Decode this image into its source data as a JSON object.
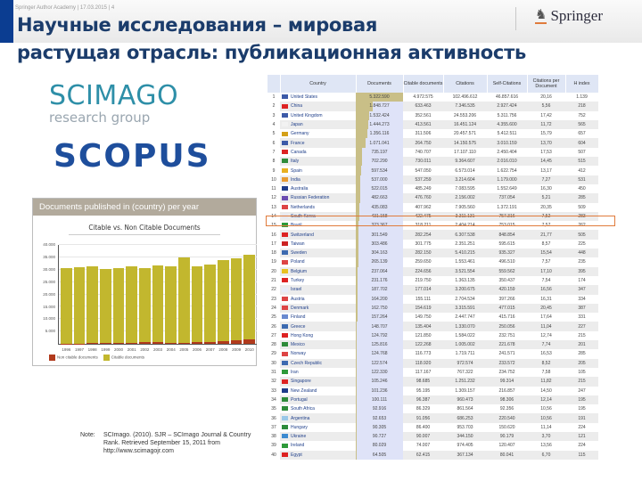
{
  "header": {
    "footer_text": "Springer Author Academy | 17.03.2015 | 4",
    "title_line1": "Научные исследования – мировая",
    "title_line2": "растущая отрасль: публикационная активность",
    "brand": "Springer",
    "brand_icon": "chess-knight-icon",
    "colors": {
      "title": "#1b3c6b",
      "accent_bar": "#0b3d91",
      "brand_underline": "#e07b3c"
    }
  },
  "logos": {
    "scimago_main": "SCIMAGO",
    "scimago_sub": "research group",
    "scopus": "SCOPUS"
  },
  "chart_panel": {
    "header": "Documents published in (country) per year"
  },
  "chart_data": {
    "type": "bar",
    "title": "Citable vs. Non Citable Documents",
    "xlabel": "",
    "ylabel": "",
    "categories": [
      "1996",
      "1997",
      "1998",
      "1999",
      "2000",
      "2001",
      "2002",
      "2003",
      "2004",
      "2005",
      "2006",
      "2007",
      "2008",
      "2009",
      "2010"
    ],
    "series": [
      {
        "name": "Non citable documents",
        "color": "#b13a1c",
        "values": [
          150,
          180,
          200,
          220,
          500,
          400,
          600,
          700,
          500,
          450,
          800,
          800,
          1200,
          1300,
          1700
        ]
      },
      {
        "name": "Citable documents",
        "color": "#c2b72e",
        "values": [
          30600,
          30800,
          31200,
          29900,
          30100,
          30900,
          30100,
          31000,
          31000,
          34600,
          30500,
          31400,
          32500,
          33300,
          34400
        ]
      }
    ],
    "yticks": [
      "5.000",
      "10.000",
      "15.000",
      "20.000",
      "25.000",
      "30.000",
      "35.000",
      "40.000"
    ],
    "ylim": [
      0,
      40000
    ],
    "grid": true,
    "legend_position": "bottom",
    "legend": [
      "Non citable documents",
      "Citable documents"
    ]
  },
  "note": {
    "label": "Note:",
    "text": "SCImago. (2010). SJR – SCImago Journal & Country Rank. Retrieved September 15, 2011 from http://www.scimagojr.com"
  },
  "table": {
    "headers": [
      "",
      "Country",
      "Documents",
      "Citable documents",
      "Citations",
      "Self-Citations",
      "Citations per Document",
      "H index"
    ],
    "highlight_row": 12,
    "rows": [
      {
        "rank": "1",
        "country": "United States",
        "flag": "#3c5aa8",
        "docs": "5.322.590",
        "citable": "4.972.575",
        "citations": "102.496.612",
        "self": "46.857.616",
        "cpd": "20,16",
        "h": "1.139",
        "bar": 100
      },
      {
        "rank": "2",
        "country": "China",
        "flag": "#d22",
        "docs": "1.848.727",
        "citable": "633.463",
        "citations": "7.346.535",
        "self": "2.927.424",
        "cpd": "5,56",
        "h": "218",
        "bar": 35
      },
      {
        "rank": "3",
        "country": "United Kingdom",
        "flag": "#3c5aa8",
        "docs": "1.532.424",
        "citable": "352.561",
        "citations": "24.553.206",
        "self": "5.311.756",
        "cpd": "17,42",
        "h": "752",
        "bar": 29
      },
      {
        "rank": "4",
        "country": "Japan",
        "flag": "#f2f2f2",
        "docs": "1.444.273",
        "citable": "413.561",
        "citations": "16.451.124",
        "self": "4.355.600",
        "cpd": "11,72",
        "h": "565",
        "bar": 27
      },
      {
        "rank": "5",
        "country": "Germany",
        "flag": "#d4a018",
        "docs": "1.356.116",
        "citable": "311.506",
        "citations": "20.457.571",
        "self": "5.412.511",
        "cpd": "15,79",
        "h": "657",
        "bar": 25
      },
      {
        "rank": "6",
        "country": "France",
        "flag": "#3c5aa8",
        "docs": "1.071.041",
        "citable": "264.750",
        "citations": "14.150.575",
        "self": "3.010.159",
        "cpd": "13,70",
        "h": "604",
        "bar": 20
      },
      {
        "rank": "7",
        "country": "Canada",
        "flag": "#d22",
        "docs": "735.197",
        "citable": "740.707",
        "citations": "17.107.110",
        "self": "2.450.404",
        "cpd": "17,53",
        "h": "507",
        "bar": 14
      },
      {
        "rank": "8",
        "country": "Italy",
        "flag": "#2e8b3a",
        "docs": "702.290",
        "citable": "730.011",
        "citations": "9.364.607",
        "self": "2.016.010",
        "cpd": "14,45",
        "h": "515",
        "bar": 13
      },
      {
        "rank": "9",
        "country": "Spain",
        "flag": "#e8b020",
        "docs": "597.534",
        "citable": "547.050",
        "citations": "6.573.014",
        "self": "1.622.754",
        "cpd": "13,17",
        "h": "412",
        "bar": 11
      },
      {
        "rank": "10",
        "country": "India",
        "flag": "#e89a30",
        "docs": "537.000",
        "citable": "537.259",
        "citations": "3.214.604",
        "self": "1.179.000",
        "cpd": "7,27",
        "h": "531",
        "bar": 10
      },
      {
        "rank": "11",
        "country": "Australia",
        "flag": "#1e3c8a",
        "docs": "522.015",
        "citable": "485.249",
        "citations": "7.083.595",
        "self": "1.552.649",
        "cpd": "16,30",
        "h": "450",
        "bar": 10
      },
      {
        "rank": "12",
        "country": "Russian Federation",
        "flag": "#6a4bb0",
        "docs": "482.663",
        "citable": "476.760",
        "citations": "2.156.002",
        "self": "737.054",
        "cpd": "5,21",
        "h": "285",
        "bar": 9
      },
      {
        "rank": "13",
        "country": "Netherlands",
        "flag": "#d44",
        "docs": "435.083",
        "citable": "407.962",
        "citations": "7.905.560",
        "self": "1.372.191",
        "cpd": "20,35",
        "h": "509",
        "bar": 8
      },
      {
        "rank": "14",
        "country": "South Korea",
        "flag": "#e8e8f0",
        "docs": "431.158",
        "citable": "422.475",
        "citations": "3.311.131",
        "self": "757.316",
        "cpd": "7,52",
        "h": "283",
        "bar": 8
      },
      {
        "rank": "15",
        "country": "Brazil",
        "flag": "#2e9a3a",
        "docs": "323.367",
        "citable": "318.211",
        "citations": "2.404.214",
        "self": "753.015",
        "cpd": "7,57",
        "h": "262",
        "bar": 6
      },
      {
        "rank": "16",
        "country": "Switzerland",
        "flag": "#d22",
        "docs": "301.549",
        "citable": "282.254",
        "citations": "6.307.538",
        "self": "848.854",
        "cpd": "21,77",
        "h": "505",
        "bar": 6
      },
      {
        "rank": "17",
        "country": "Taiwan",
        "flag": "#c22",
        "docs": "303.486",
        "citable": "301.775",
        "citations": "2.351.251",
        "self": "595.615",
        "cpd": "8,57",
        "h": "225",
        "bar": 6
      },
      {
        "rank": "18",
        "country": "Sweden",
        "flag": "#3c6ab0",
        "docs": "304.163",
        "citable": "282.150",
        "citations": "5.410.215",
        "self": "935.327",
        "cpd": "15,54",
        "h": "448",
        "bar": 6
      },
      {
        "rank": "19",
        "country": "Poland",
        "flag": "#d44",
        "docs": "265.139",
        "citable": "259.650",
        "citations": "1.553.461",
        "self": "496.510",
        "cpd": "7,57",
        "h": "235",
        "bar": 5
      },
      {
        "rank": "20",
        "country": "Belgium",
        "flag": "#e8c020",
        "docs": "237.064",
        "citable": "224.656",
        "citations": "3.521.554",
        "self": "559.562",
        "cpd": "17,10",
        "h": "395",
        "bar": 4
      },
      {
        "rank": "21",
        "country": "Turkey",
        "flag": "#d22",
        "docs": "231.176",
        "citable": "219.750",
        "citations": "1.363.135",
        "self": "350.437",
        "cpd": "7,54",
        "h": "174",
        "bar": 4
      },
      {
        "rank": "22",
        "country": "Israel",
        "flag": "#e8ecf8",
        "docs": "187.702",
        "citable": "177.014",
        "citations": "3.200.675",
        "self": "420.159",
        "cpd": "16,56",
        "h": "347",
        "bar": 3
      },
      {
        "rank": "23",
        "country": "Austria",
        "flag": "#d44",
        "docs": "164.200",
        "citable": "155.111",
        "citations": "2.704.534",
        "self": "397.266",
        "cpd": "16,31",
        "h": "334",
        "bar": 3
      },
      {
        "rank": "24",
        "country": "Denmark",
        "flag": "#d44",
        "docs": "162.750",
        "citable": "154.619",
        "citations": "3.315.591",
        "self": "477.015",
        "cpd": "20,45",
        "h": "387",
        "bar": 3
      },
      {
        "rank": "25",
        "country": "Finland",
        "flag": "#6a8ad0",
        "docs": "157.264",
        "citable": "149.750",
        "citations": "2.447.747",
        "self": "415.716",
        "cpd": "17,64",
        "h": "331",
        "bar": 3
      },
      {
        "rank": "26",
        "country": "Greece",
        "flag": "#3c6ab0",
        "docs": "148.707",
        "citable": "135.404",
        "citations": "1.330.070",
        "self": "250.056",
        "cpd": "11,04",
        "h": "227",
        "bar": 2
      },
      {
        "rank": "27",
        "country": "Hong Kong",
        "flag": "#d22",
        "docs": "124.792",
        "citable": "121.850",
        "citations": "1.584.022",
        "self": "232.751",
        "cpd": "12,74",
        "h": "215",
        "bar": 2
      },
      {
        "rank": "28",
        "country": "Mexico",
        "flag": "#2e8b3a",
        "docs": "125.816",
        "citable": "122.268",
        "citations": "1.005.002",
        "self": "221.678",
        "cpd": "7,74",
        "h": "201",
        "bar": 2
      },
      {
        "rank": "29",
        "country": "Norway",
        "flag": "#d44",
        "docs": "124.768",
        "citable": "116.773",
        "citations": "1.719.711",
        "self": "241.571",
        "cpd": "16,53",
        "h": "285",
        "bar": 2
      },
      {
        "rank": "30",
        "country": "Czech Republic",
        "flag": "#3c6ab0",
        "docs": "122.574",
        "citable": "118.920",
        "citations": "972.574",
        "self": "233.572",
        "cpd": "8,52",
        "h": "205",
        "bar": 2
      },
      {
        "rank": "31",
        "country": "Iran",
        "flag": "#2e9a3a",
        "docs": "122.330",
        "citable": "117.167",
        "citations": "767.322",
        "self": "234.752",
        "cpd": "7,58",
        "h": "105",
        "bar": 2
      },
      {
        "rank": "32",
        "country": "Singapore",
        "flag": "#d22",
        "docs": "105.246",
        "citable": "98.685",
        "citations": "1.251.232",
        "self": "99.314",
        "cpd": "11,82",
        "h": "215",
        "bar": 2
      },
      {
        "rank": "33",
        "country": "New Zealand",
        "flag": "#1e3c8a",
        "docs": "101.236",
        "citable": "95.195",
        "citations": "1.309.157",
        "self": "216.857",
        "cpd": "14,50",
        "h": "247",
        "bar": 2
      },
      {
        "rank": "34",
        "country": "Portugal",
        "flag": "#2e8b3a",
        "docs": "100.111",
        "citable": "96.387",
        "citations": "960.473",
        "self": "98.306",
        "cpd": "12,14",
        "h": "195",
        "bar": 2
      },
      {
        "rank": "35",
        "country": "South Africa",
        "flag": "#2e8b3a",
        "docs": "92.916",
        "citable": "86.329",
        "citations": "861.564",
        "self": "92.356",
        "cpd": "10,56",
        "h": "195",
        "bar": 2
      },
      {
        "rank": "36",
        "country": "Argentina",
        "flag": "#9ac8e8",
        "docs": "92.653",
        "citable": "91.056",
        "citations": "686.253",
        "self": "220.540",
        "cpd": "10,56",
        "h": "191",
        "bar": 2
      },
      {
        "rank": "37",
        "country": "Hungary",
        "flag": "#2e8b3a",
        "docs": "90.305",
        "citable": "86.400",
        "citations": "953.703",
        "self": "150.620",
        "cpd": "11,14",
        "h": "224",
        "bar": 2
      },
      {
        "rank": "38",
        "country": "Ukraine",
        "flag": "#3c8ad0",
        "docs": "90.727",
        "citable": "90.007",
        "citations": "344.150",
        "self": "90.179",
        "cpd": "3,70",
        "h": "121",
        "bar": 2
      },
      {
        "rank": "39",
        "country": "Ireland",
        "flag": "#2e9a3a",
        "docs": "80.029",
        "citable": "74.007",
        "citations": "974.405",
        "self": "120.407",
        "cpd": "13,56",
        "h": "224",
        "bar": 2
      },
      {
        "rank": "40",
        "country": "Egypt",
        "flag": "#d22",
        "docs": "64.505",
        "citable": "62.415",
        "citations": "367.134",
        "self": "80.041",
        "cpd": "6,70",
        "h": "115",
        "bar": 1
      }
    ]
  }
}
